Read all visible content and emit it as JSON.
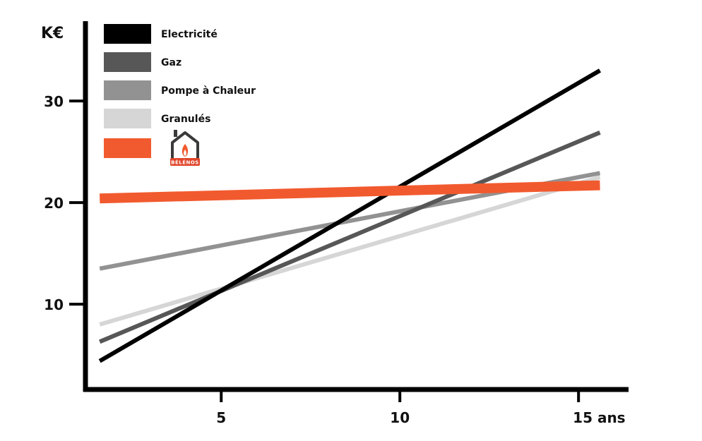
{
  "chart_data": {
    "type": "line",
    "ylabel": "K€",
    "x_ticks": [
      {
        "value": 5,
        "label": "5"
      },
      {
        "value": 10,
        "label": "10"
      },
      {
        "value": 15,
        "label": "15 ans"
      }
    ],
    "y_ticks": [
      {
        "value": 10,
        "label": "10"
      },
      {
        "value": 20,
        "label": "20"
      },
      {
        "value": 30,
        "label": "30"
      }
    ],
    "xlim": [
      1.2,
      16.4
    ],
    "ylim": [
      1.6,
      38.9
    ],
    "grid": false,
    "legend_position": "top-left",
    "series": [
      {
        "name": "Electricité",
        "color": "#000000",
        "x": [
          1.6,
          15.6
        ],
        "y": [
          4.4,
          33.0
        ]
      },
      {
        "name": "Gaz",
        "color": "#575757",
        "x": [
          1.6,
          15.6
        ],
        "y": [
          6.3,
          26.9
        ]
      },
      {
        "name": "Pompe à Chaleur",
        "color": "#929292",
        "x": [
          1.6,
          15.6
        ],
        "y": [
          13.5,
          22.9
        ]
      },
      {
        "name": "Granulés",
        "color": "#d6d6d6",
        "x": [
          1.6,
          15.6
        ],
        "y": [
          8.0,
          22.5
        ]
      },
      {
        "name": "",
        "logo": "belenos-logo",
        "logo_text": "BÉLÉNOS",
        "color": "#f15a2e",
        "x": [
          1.6,
          15.6
        ],
        "y": [
          20.4,
          21.7
        ]
      }
    ]
  }
}
